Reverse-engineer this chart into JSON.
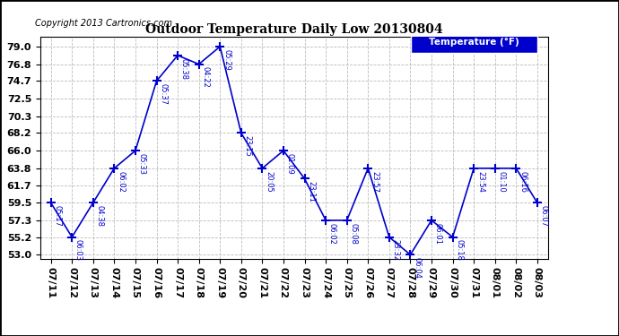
{
  "title": "Outdoor Temperature Daily Low 20130804",
  "copyright": "Copyright 2013 Cartronics.com",
  "legend_label": "Temperature (°F)",
  "line_color": "#0000cc",
  "background_color": "#ffffff",
  "grid_color": "#bbbbbb",
  "yticks": [
    53.0,
    55.2,
    57.3,
    59.5,
    61.7,
    63.8,
    66.0,
    68.2,
    70.3,
    72.5,
    74.7,
    76.8,
    79.0
  ],
  "dates": [
    "07/11",
    "07/12",
    "07/13",
    "07/14",
    "07/15",
    "07/16",
    "07/17",
    "07/18",
    "07/19",
    "07/20",
    "07/21",
    "07/22",
    "07/23",
    "07/24",
    "07/25",
    "07/26",
    "07/27",
    "07/28",
    "07/29",
    "07/30",
    "07/31",
    "08/01",
    "08/02",
    "08/03"
  ],
  "values": [
    59.5,
    55.2,
    59.5,
    63.8,
    66.0,
    74.7,
    77.9,
    76.8,
    79.0,
    68.2,
    63.8,
    66.0,
    62.5,
    57.3,
    57.3,
    63.8,
    55.2,
    53.0,
    57.3,
    55.2,
    63.8,
    63.8,
    63.8,
    59.5
  ],
  "times": [
    "05:17",
    "06:03",
    "04:38",
    "06:02",
    "05:33",
    "05:37",
    "05:38",
    "04:22",
    "05:29",
    "23:15",
    "20:05",
    "01:09",
    "23:11",
    "06:02",
    "05:08",
    "23:57",
    "23:32",
    "06:04",
    "06:01",
    "05:18",
    "23:54",
    "01:10",
    "06:16",
    "06:07"
  ],
  "ylim_min": 52.5,
  "ylim_max": 80.2,
  "outer_border_color": "#000000"
}
